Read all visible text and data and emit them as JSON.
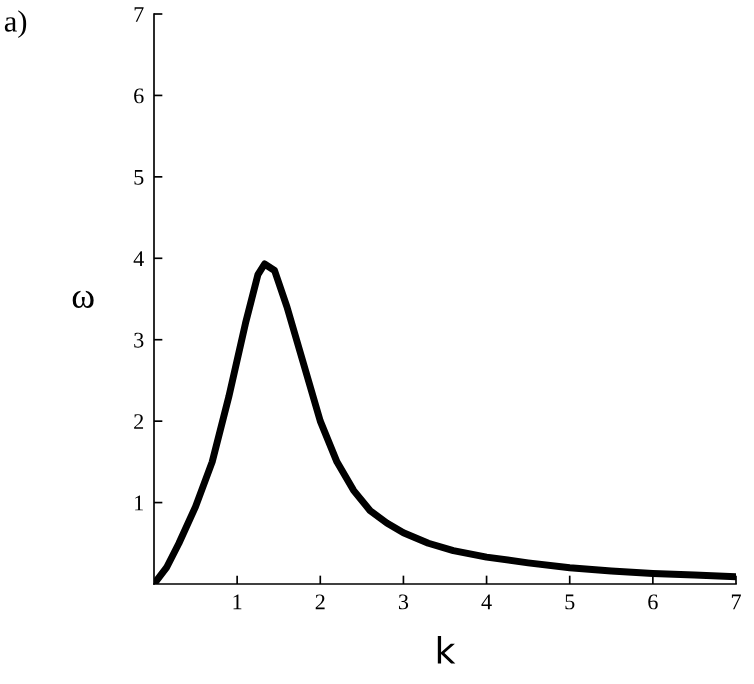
{
  "chart_data": {
    "type": "line",
    "xlabel": "k",
    "ylabel": "ω",
    "annotations": [
      "a)"
    ],
    "x": [
      0,
      0.15,
      0.3,
      0.5,
      0.7,
      0.9,
      1.1,
      1.25,
      1.33,
      1.45,
      1.6,
      1.8,
      2.0,
      2.2,
      2.4,
      2.6,
      2.8,
      3.0,
      3.3,
      3.6,
      4.0,
      4.5,
      5.0,
      5.5,
      6.0,
      6.5,
      7.0
    ],
    "series": [
      {
        "color": "#000000",
        "values": [
          0,
          0.2,
          0.5,
          0.95,
          1.5,
          2.3,
          3.2,
          3.8,
          3.93,
          3.85,
          3.4,
          2.7,
          2.0,
          1.5,
          1.15,
          0.9,
          0.75,
          0.63,
          0.5,
          0.41,
          0.33,
          0.26,
          0.2,
          0.16,
          0.13,
          0.11,
          0.09
        ]
      }
    ],
    "xlim": [
      0,
      7
    ],
    "ylim": [
      0,
      7
    ],
    "xticks": [
      1,
      2,
      3,
      4,
      5,
      6,
      7
    ],
    "yticks": [
      1,
      2,
      3,
      4,
      5,
      6,
      7
    ],
    "grid": false,
    "marker": "none",
    "line_style": "solid"
  }
}
